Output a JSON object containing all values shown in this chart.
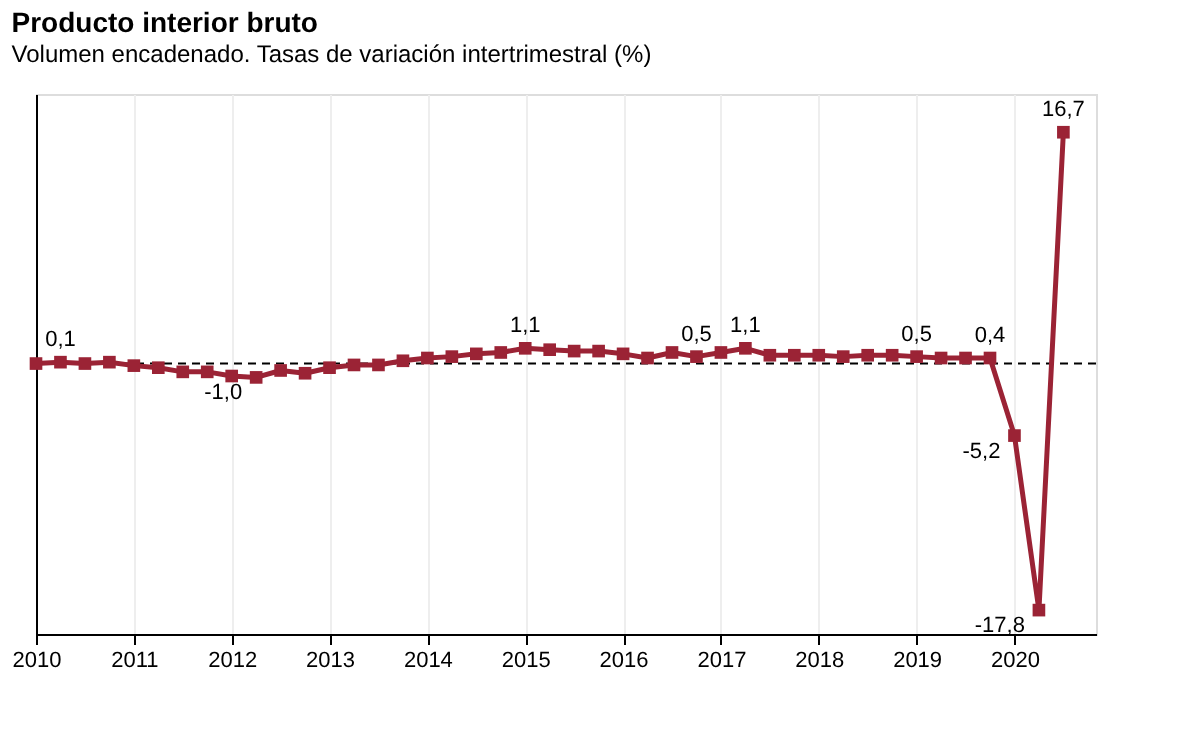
{
  "chart_data": {
    "type": "line",
    "title": "Producto interior bruto",
    "subtitle": "Volumen encadenado. Tasas de variación intertrimestral (%)",
    "tick_labels": "x",
    "x": [
      "2010-01",
      "2010-04",
      "2010-07",
      "2010-10",
      "2011-01",
      "2011-04",
      "2011-07",
      "2011-10",
      "2012-01",
      "2012-04",
      "2012-07",
      "2012-10",
      "2013-01",
      "2013-04",
      "2013-07",
      "2013-10",
      "2014-01",
      "2014-04",
      "2014-07",
      "2014-10",
      "2015-01",
      "2015-04",
      "2015-07",
      "2015-10",
      "2016-01",
      "2016-04",
      "2016-07",
      "2016-10",
      "2017-01",
      "2017-04",
      "2017-07",
      "2017-10",
      "2018-01",
      "2018-04",
      "2018-07",
      "2018-10",
      "2019-01",
      "2019-04",
      "2019-07",
      "2019-10",
      "2020-01",
      "2020-04",
      "2020-07"
    ],
    "series": [
      {
        "color": "#9b2335",
        "values": [
          0.0,
          0.1,
          0.0,
          0.1,
          -0.15,
          -0.3,
          -0.6,
          -0.6,
          -0.9,
          -1.0,
          -0.5,
          -0.7,
          -0.3,
          -0.1,
          -0.1,
          0.2,
          0.4,
          0.5,
          0.7,
          0.8,
          1.1,
          1.0,
          0.9,
          0.9,
          0.7,
          0.4,
          0.8,
          0.5,
          0.8,
          1.1,
          0.6,
          0.6,
          0.6,
          0.5,
          0.6,
          0.6,
          0.5,
          0.4,
          0.4,
          0.4,
          -5.2,
          -17.8,
          16.7
        ],
        "value_labels": [
          null,
          "0,1",
          null,
          null,
          null,
          null,
          null,
          null,
          null,
          "-1,0",
          null,
          null,
          null,
          null,
          null,
          null,
          null,
          null,
          null,
          null,
          "1,1",
          null,
          null,
          null,
          null,
          null,
          null,
          "0,5",
          null,
          "1,1",
          null,
          null,
          null,
          null,
          null,
          null,
          "0,5",
          null,
          null,
          "0,4",
          "-5,2",
          "-17,8",
          "16,7"
        ]
      }
    ],
    "xlim": [
      "2010-01",
      "2020-11"
    ],
    "xticks": [
      "2010",
      "2011",
      "2012",
      "2013",
      "2014",
      "2015",
      "2016",
      "2017",
      "2018",
      "2019",
      "2020"
    ],
    "ref_lines": [
      {
        "axis": "y",
        "value": 0,
        "line_style": "dashed",
        "color": "#000000"
      }
    ],
    "grid": "x",
    "marker": "square",
    "line_style": "solid"
  }
}
